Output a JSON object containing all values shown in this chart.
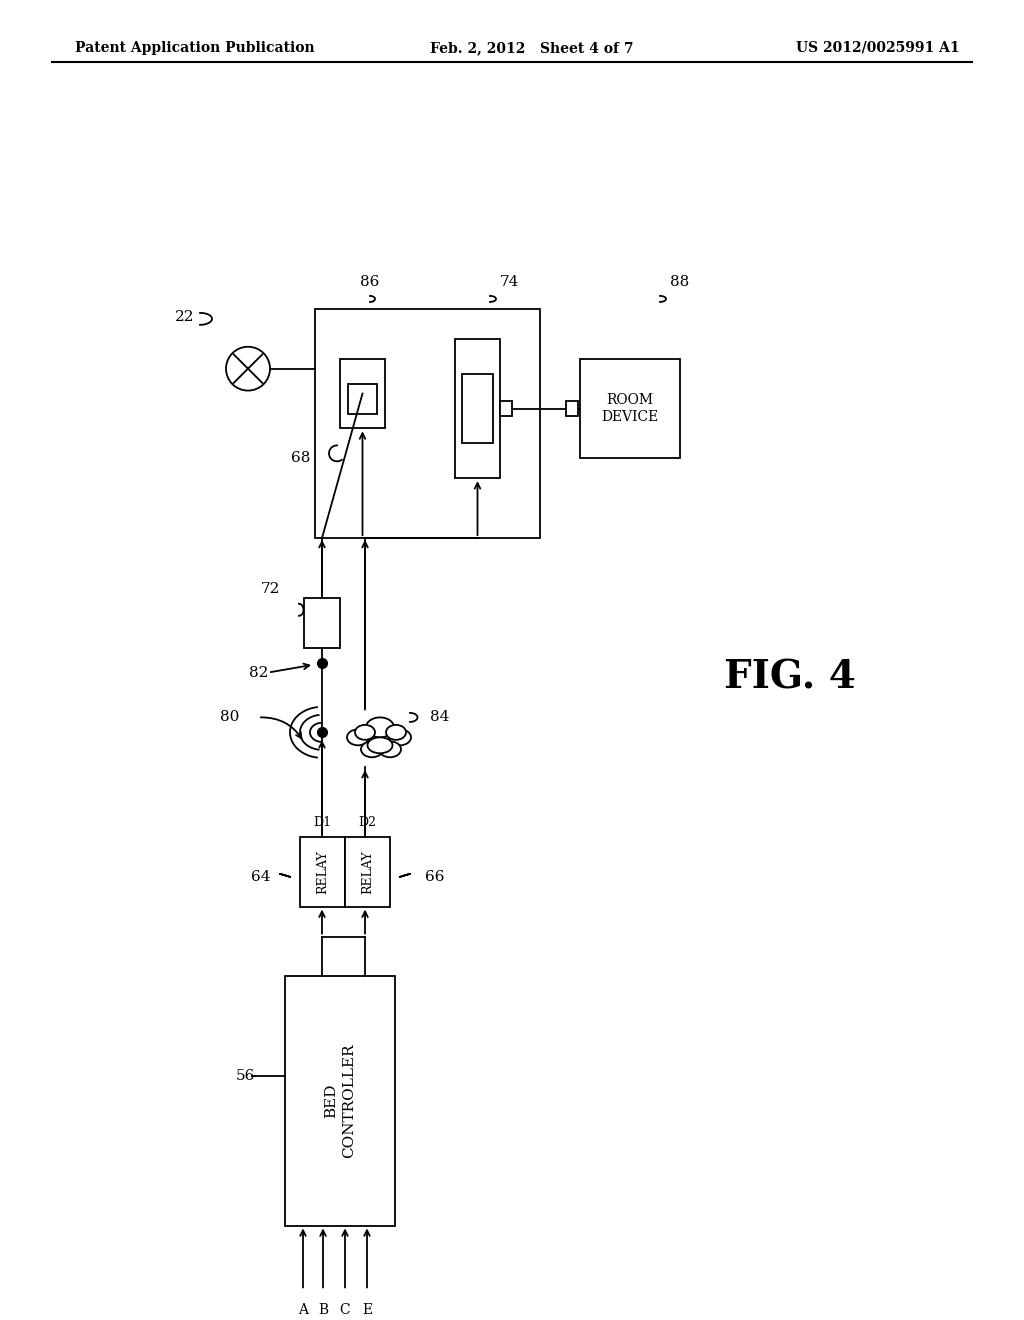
{
  "bg_color": "#ffffff",
  "header_left": "Patent Application Publication",
  "header_center": "Feb. 2, 2012   Sheet 4 of 7",
  "header_right": "US 2012/0025991 A1",
  "fig_label": "FIG. 4"
}
